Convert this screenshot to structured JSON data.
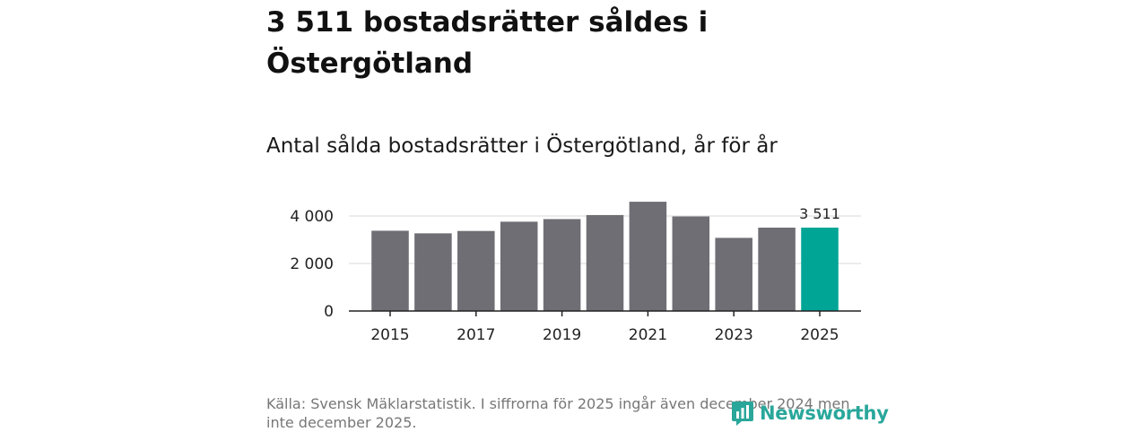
{
  "title": "3 511 bostadsrätter såldes i Östergötland",
  "subtitle": "Antal sålda bostadsrätter i Östergötland, år för år",
  "source": "Källa: Svensk Mäklarstatistik. I siffrorna för 2025 ingår även december 2024 men inte december 2025.",
  "brand": {
    "name": "Newsworthy",
    "color": "#2aa79b"
  },
  "colors": {
    "bar": "#6f6e74",
    "highlight": "#00a596",
    "grid": "#d9d9d9",
    "axis": "#222222"
  },
  "chart_data": {
    "type": "bar",
    "title": "Antal sålda bostadsrätter i Östergötland, år för år",
    "xlabel": "",
    "ylabel": "",
    "categories": [
      "2015",
      "2016",
      "2017",
      "2018",
      "2019",
      "2020",
      "2021",
      "2022",
      "2023",
      "2024",
      "2025"
    ],
    "values": [
      3380,
      3270,
      3370,
      3760,
      3870,
      4040,
      4600,
      3980,
      3080,
      3510,
      3511
    ],
    "highlight_index": 10,
    "highlight_label": "3 511",
    "ylim": [
      0,
      4600
    ],
    "yticks": [
      0,
      2000,
      4000
    ],
    "ytick_labels": [
      "0",
      "2 000",
      "4 000"
    ],
    "xtick_labels": [
      "2015",
      "2017",
      "2019",
      "2021",
      "2023",
      "2025"
    ],
    "grid": true
  }
}
